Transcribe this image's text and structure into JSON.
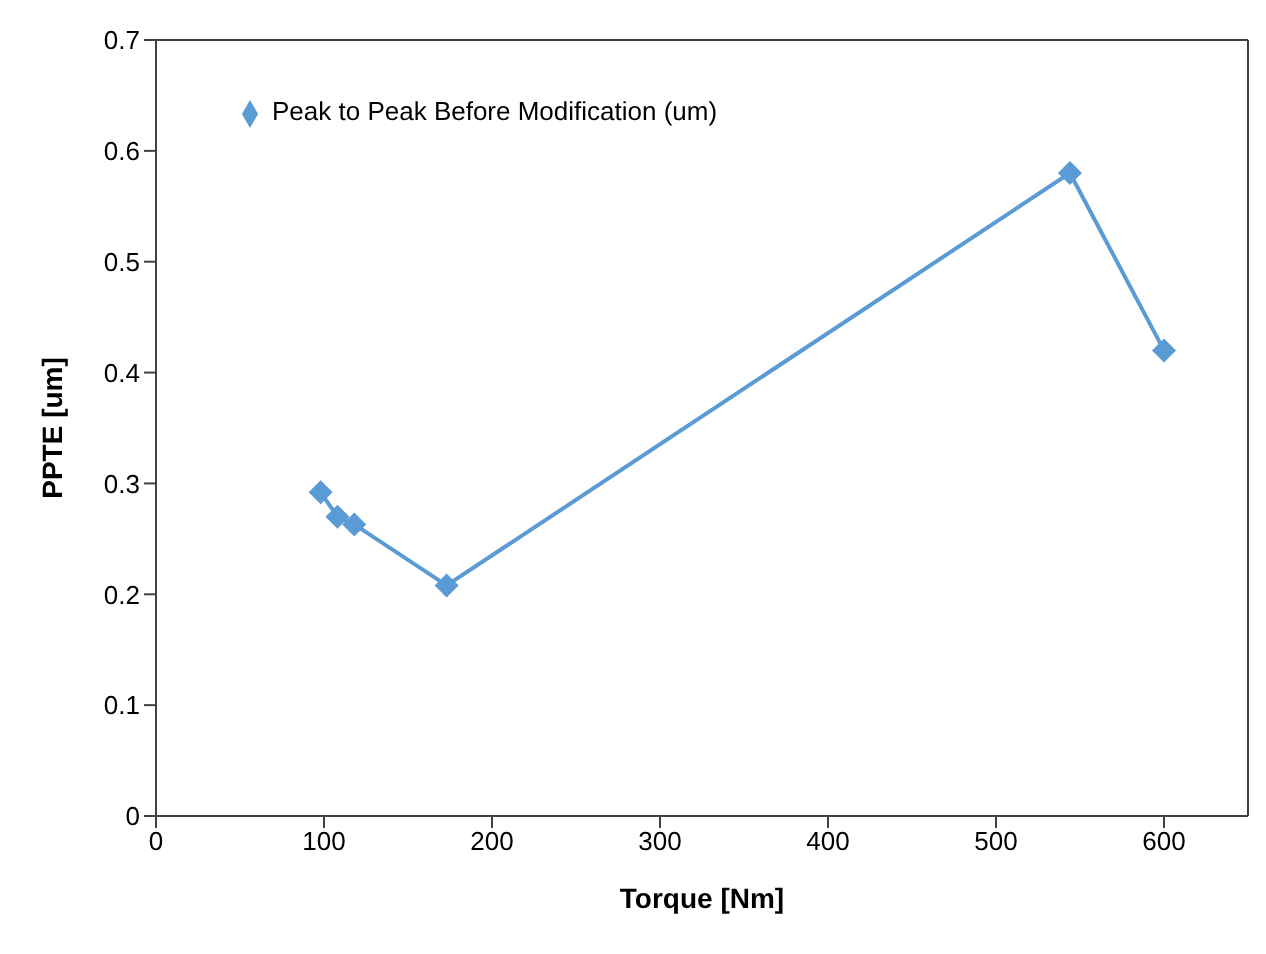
{
  "chart_data": {
    "type": "line",
    "xlabel": "Torque [Nm]",
    "ylabel": "PPTE [um]",
    "x": [
      98,
      108,
      118,
      173,
      544,
      600
    ],
    "series": [
      {
        "name": "Peak to Peak Before Modification (um)",
        "color": "#5b9bd5",
        "values": [
          0.292,
          0.27,
          0.263,
          0.208,
          0.58,
          0.42
        ]
      }
    ],
    "xlim": [
      0,
      650
    ],
    "xticks": [
      0,
      100,
      200,
      300,
      400,
      500,
      600
    ],
    "ylim": [
      0,
      0.7
    ],
    "yticks": [
      0,
      0.1,
      0.2,
      0.3,
      0.4,
      0.5,
      0.6,
      0.7
    ],
    "grid": false,
    "legend": "top left",
    "marker": "diamond",
    "line_style": "solid"
  }
}
